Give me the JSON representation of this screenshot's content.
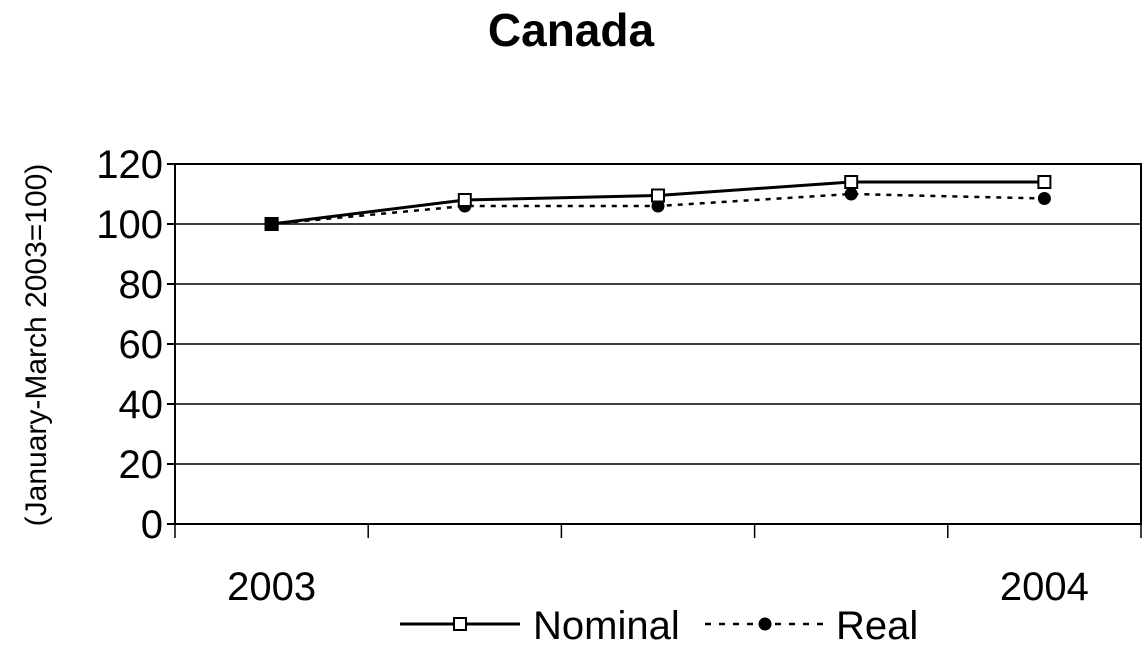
{
  "chart_data": {
    "type": "line",
    "title": "Canada",
    "ylabel": "(January-March 2003=100)",
    "xlabel": "",
    "x_tick_labels": [
      {
        "index": 0,
        "label": "2003"
      },
      {
        "index": 4,
        "label": "2004"
      }
    ],
    "ylim": [
      0,
      120
    ],
    "yticks": [
      0,
      20,
      40,
      60,
      80,
      100,
      120
    ],
    "grid": true,
    "legend_position": "bottom",
    "series": [
      {
        "name": "Nominal",
        "values": [
          100,
          108,
          109.5,
          114,
          114
        ],
        "line_style": "solid",
        "marker": "open-square",
        "color": "#000000"
      },
      {
        "name": "Real",
        "values": [
          100,
          106,
          106,
          110,
          108.5
        ],
        "line_style": "dotted",
        "marker": "filled-circle",
        "color": "#000000"
      }
    ]
  }
}
